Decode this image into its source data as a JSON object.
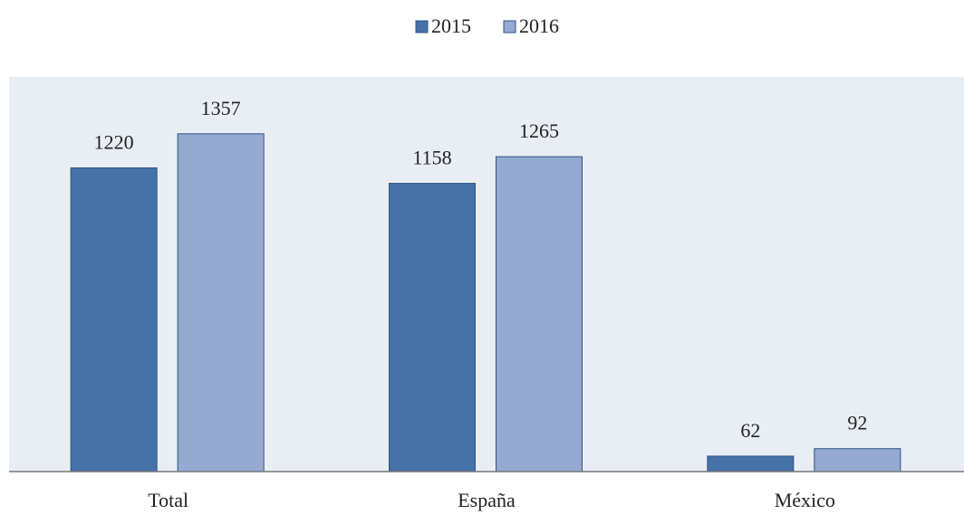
{
  "chart_data": {
    "type": "bar",
    "categories": [
      "Total",
      "España",
      "México"
    ],
    "series": [
      {
        "name": "2015",
        "color": "#4572a7",
        "values": [
          1220,
          1158,
          62
        ]
      },
      {
        "name": "2016",
        "color": "#95a9d1",
        "values": [
          1357,
          1265,
          92
        ]
      }
    ],
    "ylim": [
      0,
      1600
    ]
  }
}
